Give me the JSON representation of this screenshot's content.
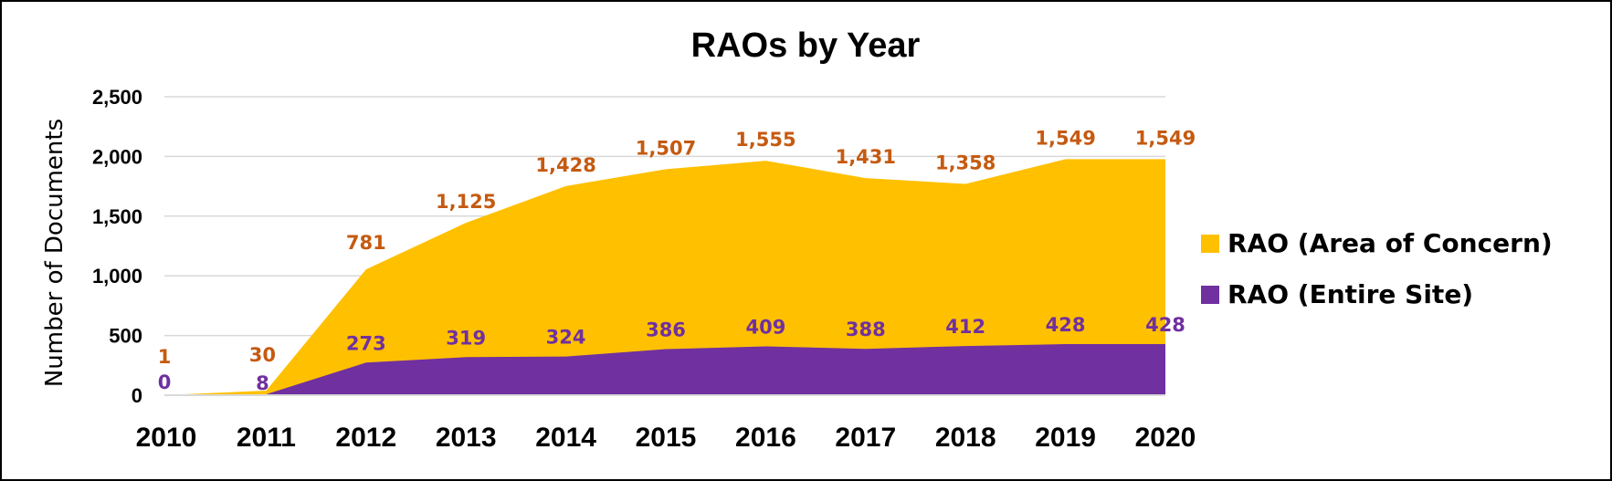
{
  "chart_data": {
    "type": "area",
    "stacked": true,
    "title": "RAOs by Year",
    "xlabel": "",
    "ylabel": "Number of Documents",
    "x": [
      "2010",
      "2011",
      "2012",
      "2013",
      "2014",
      "2015",
      "2016",
      "2017",
      "2018",
      "2019",
      "2020"
    ],
    "ylim": [
      0,
      2500
    ],
    "yticks": [
      0,
      500,
      1000,
      1500,
      2000,
      2500
    ],
    "ytick_labels": [
      "0",
      "500",
      "1,000",
      "1,500",
      "2,000",
      "2,500"
    ],
    "grid": true,
    "legend_position": "right",
    "series": [
      {
        "name": "RAO (Entire Site)",
        "color": "#7030A0",
        "label_color": "#7030A0",
        "values": [
          0,
          8,
          273,
          319,
          324,
          386,
          409,
          388,
          412,
          428,
          428
        ],
        "labels": [
          "0",
          "8",
          "273",
          "319",
          "324",
          "386",
          "409",
          "388",
          "412",
          "428",
          "428"
        ]
      },
      {
        "name": "RAO (Area of Concern)",
        "color": "#FFC000",
        "label_color": "#C55A11",
        "values": [
          1,
          30,
          781,
          1125,
          1428,
          1507,
          1555,
          1431,
          1358,
          1549,
          1549
        ],
        "labels": [
          "1",
          "30",
          "781",
          "1,125",
          "1,428",
          "1,507",
          "1,555",
          "1,431",
          "1,358",
          "1,549",
          "1,549"
        ]
      }
    ],
    "legend_order": [
      "RAO (Area of Concern)",
      "RAO (Entire Site)"
    ]
  }
}
